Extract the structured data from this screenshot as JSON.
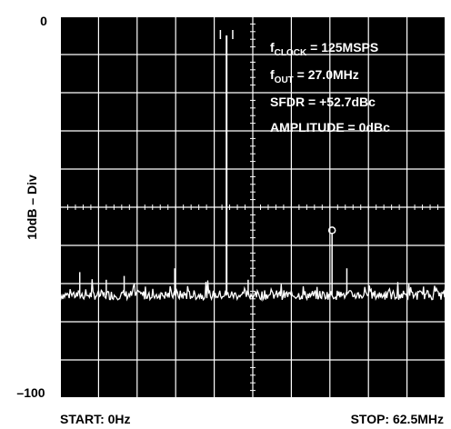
{
  "chart_data": {
    "type": "line",
    "title": "",
    "xlabel": "",
    "ylabel": "10dB – Div",
    "y_tick_labels": {
      "top": "0",
      "bottom": "–100"
    },
    "x_start_label": "START: 0Hz",
    "x_stop_label": "STOP: 62.5MHz",
    "xlim_mhz": [
      0,
      62.5
    ],
    "ylim_db": [
      -100,
      0
    ],
    "grid": true,
    "background": "#000000",
    "trace_color": "#ffffff",
    "noise_floor_db": -73,
    "annotations": {
      "clock": {
        "symbol": "f",
        "sub": "CLOCK",
        "rest": " = 125MSPS"
      },
      "fout": {
        "symbol": "f",
        "sub": "OUT",
        "rest": " = 27.0MHz"
      },
      "sfdr": "SFDR = +52.7dBc",
      "amplitude": "AMPLITUDE = 0dBc"
    },
    "series": [
      {
        "points": [
          {
            "x": 27.0,
            "y": -5
          },
          {
            "x": 44.1,
            "y": -57
          },
          {
            "x": 46.5,
            "y": -66
          },
          {
            "x": 3.2,
            "y": -67
          },
          {
            "x": 18.6,
            "y": -66
          },
          {
            "x": 10.4,
            "y": -68
          },
          {
            "x": 30.5,
            "y": -69
          },
          {
            "x": 7.5,
            "y": -69
          }
        ]
      }
    ]
  }
}
